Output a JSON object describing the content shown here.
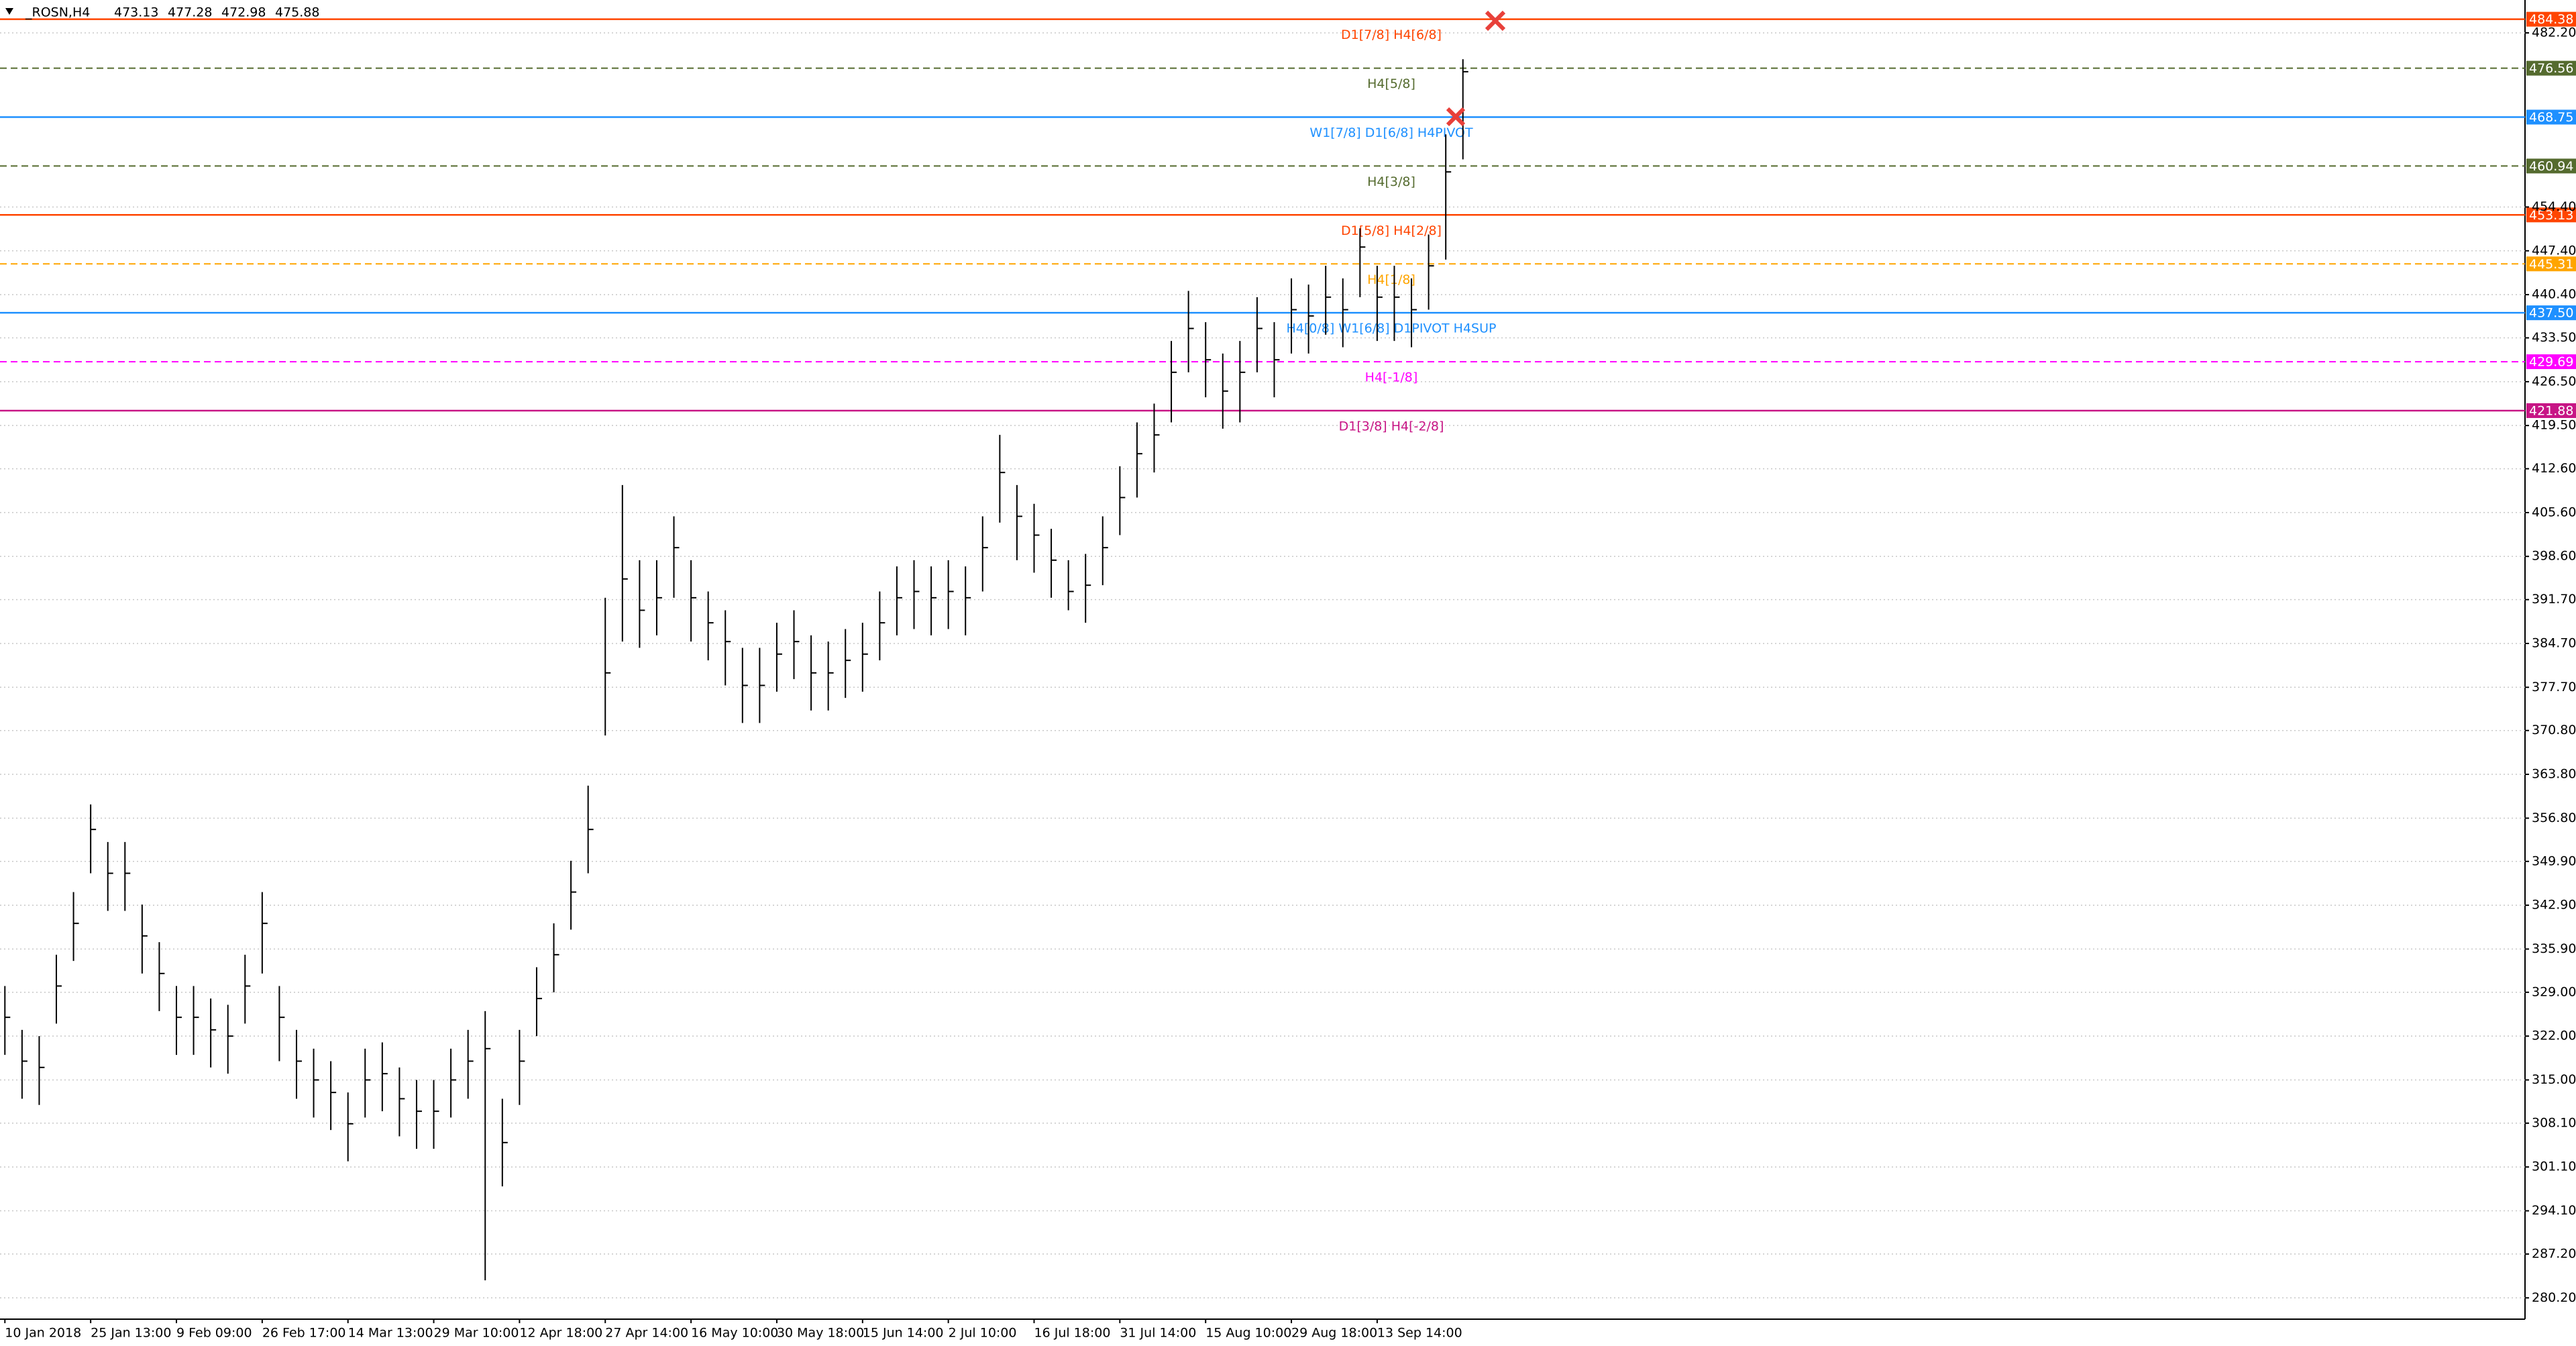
{
  "header": {
    "symbol": "_ROSN,H4",
    "ohlc": [
      473.13,
      477.28,
      472.98,
      475.88
    ]
  },
  "chart_data": {
    "type": "ohlc",
    "grid": true,
    "ylim": [
      276.8,
      487.45
    ],
    "yticks": [
      {
        "value": 482.2,
        "label": "482.20"
      },
      {
        "value": 454.4,
        "label": "454.40"
      },
      {
        "value": 447.4,
        "label": "447.40"
      },
      {
        "value": 440.4,
        "label": "440.40"
      },
      {
        "value": 433.5,
        "label": "433.50"
      },
      {
        "value": 426.5,
        "label": "426.50"
      },
      {
        "value": 419.5,
        "label": "419.50"
      },
      {
        "value": 412.6,
        "label": "412.60"
      },
      {
        "value": 405.6,
        "label": "405.60"
      },
      {
        "value": 398.6,
        "label": "398.60"
      },
      {
        "value": 391.7,
        "label": "391.70"
      },
      {
        "value": 384.7,
        "label": "384.70"
      },
      {
        "value": 377.7,
        "label": "377.70"
      },
      {
        "value": 370.8,
        "label": "370.80"
      },
      {
        "value": 363.8,
        "label": "363.80"
      },
      {
        "value": 356.8,
        "label": "356.80"
      },
      {
        "value": 349.9,
        "label": "349.90"
      },
      {
        "value": 342.9,
        "label": "342.90"
      },
      {
        "value": 335.9,
        "label": "335.90"
      },
      {
        "value": 329,
        "label": "329.00"
      },
      {
        "value": 322,
        "label": "322.00"
      },
      {
        "value": 315,
        "label": "315.00"
      },
      {
        "value": 308.1,
        "label": "308.10"
      },
      {
        "value": 301.1,
        "label": "301.10"
      },
      {
        "value": 294.1,
        "label": "294.10"
      },
      {
        "value": 287.2,
        "label": "287.20"
      },
      {
        "value": 280.2,
        "label": "280.20"
      }
    ],
    "categories": [
      "10 Jan 2018",
      null,
      null,
      null,
      null,
      "25 Jan 13:00",
      null,
      null,
      null,
      null,
      "9 Feb 09:00",
      null,
      null,
      null,
      null,
      "26 Feb 17:00",
      null,
      null,
      null,
      null,
      "14 Mar 13:00",
      null,
      null,
      null,
      null,
      "29 Mar 10:00",
      null,
      null,
      null,
      null,
      "12 Apr 18:00",
      null,
      null,
      null,
      null,
      "27 Apr 14:00",
      null,
      null,
      null,
      null,
      "16 May 10:00",
      null,
      null,
      null,
      null,
      "30 May 18:00",
      null,
      null,
      null,
      null,
      "15 Jun 14:00",
      null,
      null,
      null,
      null,
      "2 Jul 10:00",
      null,
      null,
      null,
      null,
      "16 Jul 18:00",
      null,
      null,
      null,
      null,
      "31 Jul 14:00",
      null,
      null,
      null,
      null,
      "15 Aug 10:00",
      null,
      null,
      null,
      null,
      "29 Aug 18:00",
      null,
      null,
      null,
      null,
      "13 Sep 14:00",
      null,
      null,
      null,
      null,
      null
    ],
    "color": "#000000",
    "high": [
      330,
      323,
      322,
      335,
      345,
      359,
      353,
      353,
      343,
      337,
      330,
      330,
      328,
      327,
      335,
      345,
      330,
      323,
      320,
      318,
      313,
      320,
      321,
      317,
      315,
      315,
      320,
      323,
      326,
      312,
      323,
      333,
      340,
      350,
      362,
      392,
      410,
      398,
      398,
      405,
      398,
      393,
      390,
      384,
      384,
      388,
      390,
      386,
      385,
      387,
      388,
      393,
      397,
      398,
      397,
      398,
      397,
      405,
      418,
      410,
      407,
      403,
      398,
      399,
      405,
      413,
      420,
      423,
      433,
      441,
      436,
      431,
      433,
      440,
      436,
      443,
      442,
      445,
      443,
      451,
      445,
      445,
      443,
      450,
      466,
      478
    ],
    "low": [
      319,
      312,
      311,
      324,
      334,
      348,
      342,
      342,
      332,
      326,
      319,
      319,
      317,
      316,
      324,
      332,
      318,
      312,
      309,
      307,
      302,
      309,
      310,
      306,
      304,
      304,
      309,
      312,
      283,
      298,
      311,
      322,
      329,
      339,
      348,
      370,
      385,
      384,
      386,
      392,
      385,
      382,
      378,
      372,
      372,
      377,
      379,
      374,
      374,
      376,
      377,
      382,
      386,
      387,
      386,
      387,
      386,
      393,
      404,
      398,
      396,
      392,
      390,
      388,
      394,
      402,
      408,
      412,
      420,
      428,
      424,
      419,
      420,
      428,
      424,
      431,
      431,
      434,
      432,
      440,
      433,
      433,
      432,
      438,
      446,
      462
    ],
    "values": [
      325,
      318,
      317,
      330,
      340,
      355,
      348,
      348,
      338,
      332,
      325,
      325,
      323,
      322,
      330,
      340,
      325,
      318,
      315,
      313,
      308,
      315,
      316,
      312,
      310,
      310,
      315,
      318,
      320,
      305,
      318,
      328,
      335,
      345,
      355,
      380,
      395,
      390,
      392,
      400,
      392,
      388,
      385,
      378,
      378,
      383,
      385,
      380,
      380,
      382,
      383,
      388,
      392,
      393,
      392,
      393,
      392,
      400,
      412,
      405,
      402,
      398,
      393,
      394,
      400,
      408,
      415,
      418,
      428,
      435,
      430,
      425,
      428,
      435,
      430,
      438,
      437,
      440,
      438,
      448,
      440,
      440,
      438,
      445,
      460,
      476
    ],
    "levels": [
      {
        "value": 484.38,
        "value_label": "484.38",
        "label": "D1[7/8] H4[6/8]",
        "color": "#ff4500",
        "dashed": false
      },
      {
        "value": 476.56,
        "value_label": "476.56",
        "label": "H4[5/8]",
        "color": "#556b2f",
        "dashed": true
      },
      {
        "value": 468.75,
        "value_label": "468.75",
        "label": "W1[7/8] D1[6/8] H4PIVOT",
        "color": "#1e90ff",
        "dashed": false
      },
      {
        "value": 460.94,
        "value_label": "460.94",
        "label": "H4[3/8]",
        "color": "#556b2f",
        "dashed": true
      },
      {
        "value": 453.13,
        "value_label": "453.13",
        "label": "D1[5/8] H4[2/8]",
        "color": "#ff4500",
        "dashed": false
      },
      {
        "value": 445.31,
        "value_label": "445.31",
        "label": "H4[1/8]",
        "color": "#ffa500",
        "dashed": true
      },
      {
        "value": 437.5,
        "value_label": "437.50",
        "label": "H4[0/8] W1[6/8] D1PIVOT H4SUP",
        "color": "#1e90ff",
        "dashed": false
      },
      {
        "value": 429.69,
        "value_label": "429.69",
        "label": "H4[-1/8]",
        "color": "#ff00ff",
        "dashed": true
      },
      {
        "value": 421.88,
        "value_label": "421.88",
        "label": "D1[3/8] H4[-2/8]",
        "color": "#c71585",
        "dashed": false
      }
    ]
  }
}
